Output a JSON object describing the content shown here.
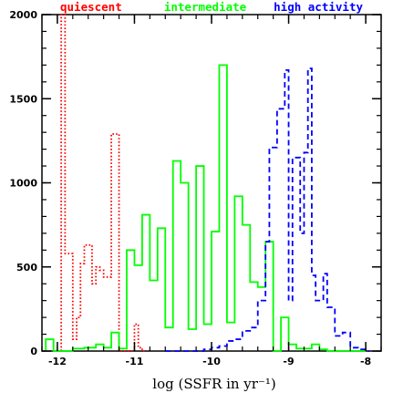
{
  "chart_data": {
    "type": "histogram",
    "xlabel": "log (SSFR in yr⁻¹)",
    "ylabel": "",
    "xlim": [
      -12.2,
      -7.8
    ],
    "ylim": [
      0,
      2000
    ],
    "xticks": [
      {
        "value": -12,
        "label": "-12"
      },
      {
        "value": -11,
        "label": "-11"
      },
      {
        "value": -10,
        "label": "-10"
      },
      {
        "value": -9,
        "label": "-9"
      },
      {
        "value": -8,
        "label": "-8"
      }
    ],
    "yticks": [
      {
        "value": 0,
        "label": "0"
      },
      {
        "value": 500,
        "label": "500"
      },
      {
        "value": 1000,
        "label": "1000"
      },
      {
        "value": 1500,
        "label": "1500"
      },
      {
        "value": 2000,
        "label": "2000"
      }
    ],
    "x_minor_step": 0.2,
    "y_minor_step": 100,
    "series": [
      {
        "name": "quiescent",
        "color": "#ff0000",
        "line": "dotted",
        "legend_position": "top-left",
        "bins": [
          [
            -11.95,
            -11.9,
            2000
          ],
          [
            -11.9,
            -11.8,
            580
          ],
          [
            -11.8,
            -11.75,
            70
          ],
          [
            -11.75,
            -11.7,
            200
          ],
          [
            -11.7,
            -11.65,
            520
          ],
          [
            -11.65,
            -11.55,
            630
          ],
          [
            -11.55,
            -11.5,
            400
          ],
          [
            -11.5,
            -11.45,
            500
          ],
          [
            -11.45,
            -11.4,
            480
          ],
          [
            -11.4,
            -11.3,
            440
          ],
          [
            -11.3,
            -11.2,
            1290
          ],
          [
            -11.2,
            -11.0,
            0
          ],
          [
            -11.0,
            -10.95,
            160
          ],
          [
            -10.95,
            -10.9,
            20
          ],
          [
            -10.9,
            -10.85,
            0
          ]
        ]
      },
      {
        "name": "intermediate",
        "color": "#00ff00",
        "line": "solid",
        "legend_position": "top-center",
        "bins": [
          [
            -12.15,
            -12.05,
            70
          ],
          [
            -12.05,
            -11.8,
            0
          ],
          [
            -11.8,
            -11.65,
            15
          ],
          [
            -11.65,
            -11.5,
            20
          ],
          [
            -11.5,
            -11.4,
            40
          ],
          [
            -11.4,
            -11.3,
            20
          ],
          [
            -11.3,
            -11.2,
            110
          ],
          [
            -11.2,
            -11.1,
            15
          ],
          [
            -11.1,
            -11.0,
            600
          ],
          [
            -11.0,
            -10.9,
            510
          ],
          [
            -10.9,
            -10.8,
            810
          ],
          [
            -10.8,
            -10.7,
            420
          ],
          [
            -10.7,
            -10.6,
            730
          ],
          [
            -10.6,
            -10.5,
            140
          ],
          [
            -10.5,
            -10.4,
            1130
          ],
          [
            -10.4,
            -10.3,
            1000
          ],
          [
            -10.3,
            -10.2,
            130
          ],
          [
            -10.2,
            -10.1,
            1100
          ],
          [
            -10.1,
            -10.0,
            160
          ],
          [
            -10.0,
            -9.9,
            710
          ],
          [
            -9.9,
            -9.8,
            1700
          ],
          [
            -9.8,
            -9.7,
            170
          ],
          [
            -9.7,
            -9.6,
            920
          ],
          [
            -9.6,
            -9.5,
            750
          ],
          [
            -9.5,
            -9.4,
            410
          ],
          [
            -9.4,
            -9.3,
            380
          ],
          [
            -9.3,
            -9.2,
            650
          ],
          [
            -9.2,
            -9.1,
            0
          ],
          [
            -9.1,
            -9.0,
            200
          ],
          [
            -9.0,
            -8.9,
            40
          ],
          [
            -8.9,
            -8.7,
            15
          ],
          [
            -8.7,
            -8.6,
            40
          ],
          [
            -8.6,
            -8.5,
            10
          ],
          [
            -8.5,
            -8.0,
            0
          ]
        ]
      },
      {
        "name": "high activity",
        "color": "#0000ff",
        "line": "dashed",
        "legend_position": "top-right",
        "bins": [
          [
            -10.6,
            -10.1,
            0
          ],
          [
            -10.1,
            -10.0,
            10
          ],
          [
            -10.0,
            -9.9,
            20
          ],
          [
            -9.9,
            -9.8,
            30
          ],
          [
            -9.8,
            -9.7,
            60
          ],
          [
            -9.7,
            -9.6,
            70
          ],
          [
            -9.6,
            -9.5,
            120
          ],
          [
            -9.5,
            -9.4,
            140
          ],
          [
            -9.4,
            -9.3,
            300
          ],
          [
            -9.3,
            -9.25,
            650
          ],
          [
            -9.25,
            -9.15,
            1210
          ],
          [
            -9.15,
            -9.05,
            1440
          ],
          [
            -9.05,
            -9.0,
            1670
          ],
          [
            -9.0,
            -8.95,
            300
          ],
          [
            -8.95,
            -8.85,
            1150
          ],
          [
            -8.85,
            -8.8,
            700
          ],
          [
            -8.8,
            -8.75,
            1180
          ],
          [
            -8.75,
            -8.7,
            1680
          ],
          [
            -8.7,
            -8.65,
            450
          ],
          [
            -8.65,
            -8.55,
            300
          ],
          [
            -8.55,
            -8.5,
            460
          ],
          [
            -8.5,
            -8.4,
            260
          ],
          [
            -8.4,
            -8.3,
            90
          ],
          [
            -8.3,
            -8.2,
            110
          ],
          [
            -8.2,
            -8.1,
            20
          ],
          [
            -8.1,
            -8.0,
            10
          ],
          [
            -8.0,
            -7.95,
            0
          ]
        ]
      }
    ]
  }
}
